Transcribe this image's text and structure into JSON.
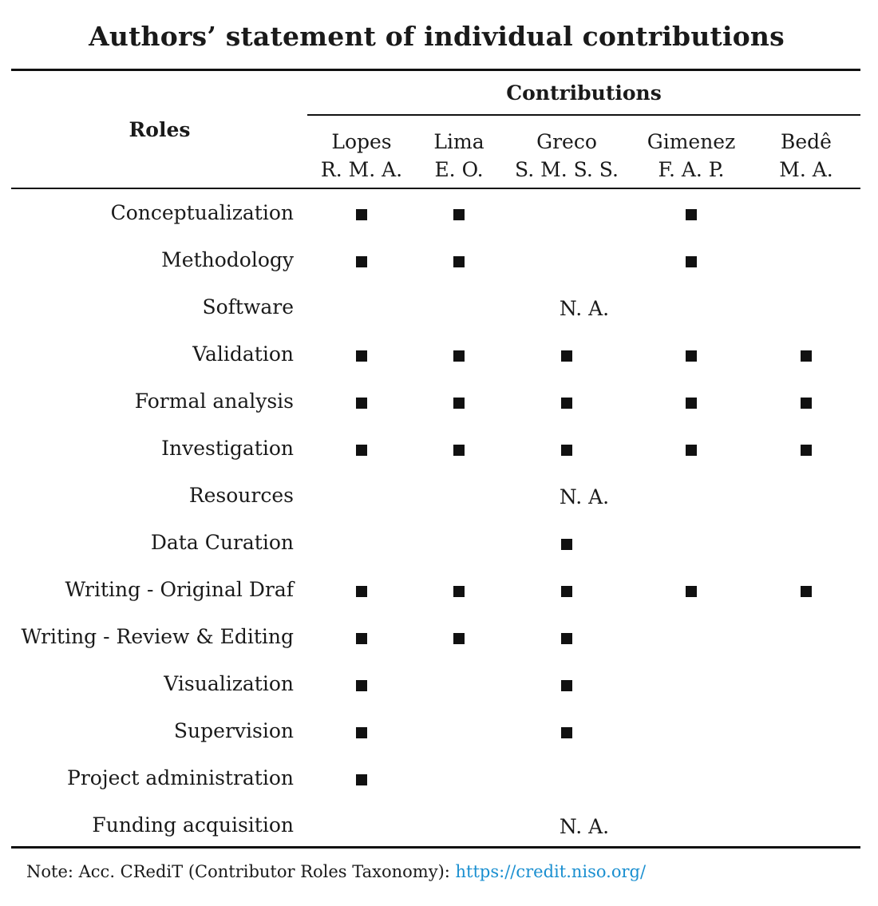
{
  "title": "Authors’ statement of individual contributions",
  "header": {
    "roles_label": "Roles",
    "contributions_label": "Contributions"
  },
  "authors": [
    {
      "surname": "Lopes",
      "initials": "R. M. A."
    },
    {
      "surname": "Lima",
      "initials": "E. O."
    },
    {
      "surname": "Greco",
      "initials": "S. M. S. S."
    },
    {
      "surname": "Gimenez",
      "initials": "F. A. P."
    },
    {
      "surname": "Bedê",
      "initials": "M. A."
    }
  ],
  "mark_symbol": "filled-square",
  "rows": [
    {
      "role": "Conceptualization",
      "marks": [
        true,
        true,
        false,
        true,
        false
      ]
    },
    {
      "role": "Methodology",
      "marks": [
        true,
        true,
        false,
        true,
        false
      ]
    },
    {
      "role": "Software",
      "na": "N. A."
    },
    {
      "role": "Validation",
      "marks": [
        true,
        true,
        true,
        true,
        true
      ]
    },
    {
      "role": "Formal analysis",
      "marks": [
        true,
        true,
        true,
        true,
        true
      ]
    },
    {
      "role": "Investigation",
      "marks": [
        true,
        true,
        true,
        true,
        true
      ]
    },
    {
      "role": "Resources",
      "na": "N. A."
    },
    {
      "role": "Data Curation",
      "marks": [
        false,
        false,
        true,
        false,
        false
      ]
    },
    {
      "role": "Writing - Original Draf",
      "marks": [
        true,
        true,
        true,
        true,
        true
      ]
    },
    {
      "role": "Writing - Review & Editing",
      "marks": [
        true,
        true,
        true,
        false,
        false
      ]
    },
    {
      "role": "Visualization",
      "marks": [
        true,
        false,
        true,
        false,
        false
      ]
    },
    {
      "role": "Supervision",
      "marks": [
        true,
        false,
        true,
        false,
        false
      ]
    },
    {
      "role": "Project administration",
      "marks": [
        true,
        false,
        false,
        false,
        false
      ]
    },
    {
      "role": "Funding acquisition",
      "na": "N. A."
    }
  ],
  "note": {
    "text": "Note: Acc. CRediT (Contributor Roles Taxonomy): ",
    "link": "https://credit.niso.org/"
  }
}
